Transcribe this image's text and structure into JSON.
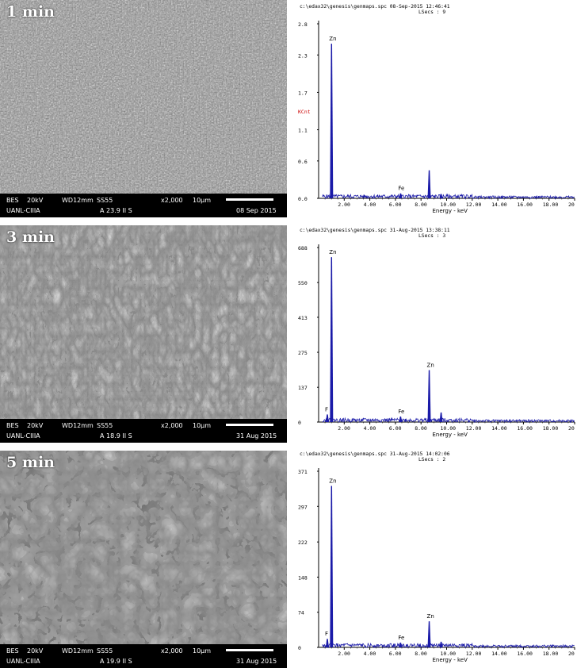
{
  "panels": [
    {
      "label": "1 min",
      "sem": {
        "detector": "BES",
        "kv": "20kV",
        "wd": "WD12mm",
        "ss": "SS55",
        "mag": "x2,000",
        "scale": "10µm",
        "lab": "UANL-CIIIA",
        "vac": "A 23.9 II S",
        "date": "08 Sep 2015"
      },
      "spectrum": {
        "header_line1": "c:\\edax32\\genesis\\genmaps.spc  08-Sep-2015 12:46:41",
        "header_line2": "LSecs : 9",
        "ymax": 2.8,
        "ylabels": [
          "2.8",
          "2.3",
          "1.7",
          "1.1",
          "0.6",
          "0.0"
        ],
        "ylabel_values": [
          2.8,
          2.3,
          1.7,
          1.1,
          0.6,
          0.0
        ],
        "cursor_label": "KCnt",
        "cursor_value": 1.4,
        "xlabel": "Energy - keV",
        "xticks": [
          "2.00",
          "4.00",
          "6.00",
          "8.00",
          "10.00",
          "12.00",
          "14.00",
          "16.00",
          "18.00",
          "20"
        ],
        "peaks": [
          {
            "label": "Zn",
            "energy": 1.01,
            "height": 2.48
          },
          {
            "label": "Fe",
            "energy": 6.4,
            "height": 0.08
          },
          {
            "label": "",
            "energy": 8.64,
            "height": 0.45
          },
          {
            "label": "",
            "energy": 9.57,
            "height": 0.07
          }
        ]
      }
    },
    {
      "label": "3 min",
      "sem": {
        "detector": "BES",
        "kv": "20kV",
        "wd": "WD12mm",
        "ss": "SS55",
        "mag": "x2,000",
        "scale": "10µm",
        "lab": "UANL-CIIIA",
        "vac": "A 18.9 II S",
        "date": "31 Aug 2015"
      },
      "spectrum": {
        "header_line1": "c:\\edax32\\genesis\\genmaps.spc  31-Aug-2015 13:38:11",
        "header_line2": "LSecs : 3",
        "ymax": 688,
        "ylabels": [
          "688",
          "550",
          "413",
          "275",
          "137",
          "0"
        ],
        "ylabel_values": [
          688,
          550,
          413,
          275,
          137,
          0
        ],
        "xlabel": "Energy - keV",
        "xticks": [
          "2.00",
          "4.00",
          "6.00",
          "8.00",
          "10.00",
          "12.00",
          "14.00",
          "16.00",
          "18.00",
          "20"
        ],
        "peaks": [
          {
            "label": "F",
            "energy": 0.68,
            "height": 30
          },
          {
            "label": "Zn",
            "energy": 1.01,
            "height": 650
          },
          {
            "label": "Fe",
            "energy": 6.4,
            "height": 22
          },
          {
            "label": "Zn",
            "energy": 8.64,
            "height": 205
          },
          {
            "label": "",
            "energy": 9.57,
            "height": 38
          }
        ]
      }
    },
    {
      "label": "5 min",
      "sem": {
        "detector": "BES",
        "kv": "20kV",
        "wd": "WD12mm",
        "ss": "SS55",
        "mag": "x2,000",
        "scale": "10µm",
        "lab": "UANL-CIIIA",
        "vac": "A 19.9 II S",
        "date": "31 Aug 2015"
      },
      "spectrum": {
        "header_line1": "c:\\edax32\\genesis\\genmaps.spc  31-Aug-2015 14:02:06",
        "header_line2": "LSecs : 2",
        "ymax": 371,
        "ylabels": [
          "371",
          "297",
          "222",
          "148",
          "74",
          "0"
        ],
        "ylabel_values": [
          371,
          297,
          222,
          148,
          74,
          0
        ],
        "xlabel": "Energy - keV",
        "xticks": [
          "2.00",
          "4.00",
          "6.00",
          "8.00",
          "10.00",
          "12.00",
          "14.00",
          "16.00",
          "18.00",
          "20"
        ],
        "peaks": [
          {
            "label": "F",
            "energy": 0.68,
            "height": 18
          },
          {
            "label": "Zn",
            "energy": 1.01,
            "height": 340
          },
          {
            "label": "Fe",
            "energy": 6.4,
            "height": 10
          },
          {
            "label": "Zn",
            "energy": 8.64,
            "height": 55
          },
          {
            "label": "",
            "energy": 9.57,
            "height": 12
          }
        ]
      }
    }
  ],
  "chart_data": [
    {
      "type": "bar",
      "title": "",
      "xlabel": "Energy - keV",
      "ylabel": "KCnt",
      "xlim": [
        0,
        20
      ],
      "ylim": [
        0,
        2.8
      ],
      "series": [
        {
          "x": [
            1.01,
            6.4,
            8.64,
            9.57
          ],
          "values": [
            2.48,
            0.08,
            0.45,
            0.07
          ]
        }
      ],
      "annotations": [
        "Zn",
        "Fe"
      ]
    },
    {
      "type": "bar",
      "title": "",
      "xlabel": "Energy - keV",
      "xlim": [
        0,
        20
      ],
      "ylim": [
        0,
        688
      ],
      "series": [
        {
          "x": [
            0.68,
            1.01,
            6.4,
            8.64,
            9.57
          ],
          "values": [
            30,
            650,
            22,
            205,
            38
          ]
        }
      ],
      "annotations": [
        "F",
        "Zn",
        "Fe",
        "Zn"
      ]
    },
    {
      "type": "bar",
      "title": "",
      "xlabel": "Energy - keV",
      "xlim": [
        0,
        20
      ],
      "ylim": [
        0,
        371
      ],
      "series": [
        {
          "x": [
            0.68,
            1.01,
            6.4,
            8.64,
            9.57
          ],
          "values": [
            18,
            340,
            10,
            55,
            12
          ]
        }
      ],
      "annotations": [
        "F",
        "Zn",
        "Fe",
        "Zn"
      ]
    }
  ]
}
